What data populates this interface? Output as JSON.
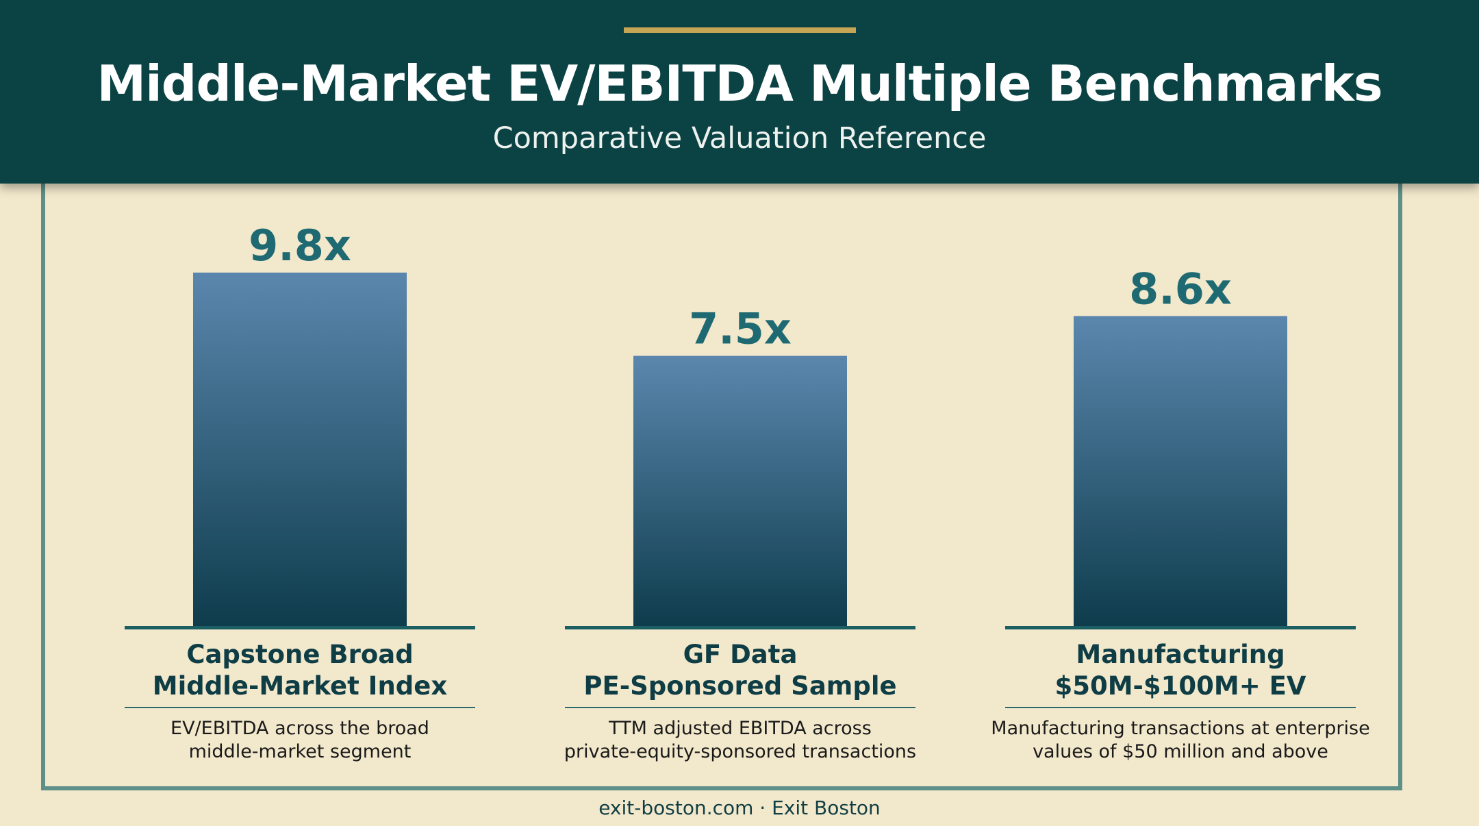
{
  "header": {
    "title": "Middle-Market EV/EBITDA Multiple Benchmarks",
    "subtitle": "Comparative Valuation Reference"
  },
  "colors": {
    "header_bg": "#0b4244",
    "accent": "#c6a554",
    "page_bg": "#f2e8cc",
    "bar_top": "#5b87ae",
    "bar_bottom": "#0e3c4c",
    "value_label": "#1f6a72",
    "category_label": "#0f3d45",
    "frame": "#5e9088"
  },
  "chart_data": {
    "type": "bar",
    "title": "Middle-Market EV/EBITDA Multiple Benchmarks",
    "subtitle": "Comparative Valuation Reference",
    "categories": [
      "Capstone Broad Middle-Market Index",
      "GF Data PE-Sponsored Sample",
      "Manufacturing $50M-$100M+ EV"
    ],
    "values": [
      9.8,
      7.5,
      8.6
    ],
    "value_labels": [
      "9.8x",
      "7.5x",
      "8.6x"
    ],
    "label_lines": [
      [
        "Capstone Broad",
        "Middle-Market Index"
      ],
      [
        "GF Data",
        "PE-Sponsored Sample"
      ],
      [
        "Manufacturing",
        "$50M-$100M+ EV"
      ]
    ],
    "descriptions": [
      [
        "EV/EBITDA across the broad",
        "middle-market segment"
      ],
      [
        "TTM adjusted EBITDA across",
        "private-equity-sponsored transactions"
      ],
      [
        "Manufacturing transactions at enterprise",
        "values of $50 million and above"
      ]
    ],
    "ylim": [
      0,
      9.8
    ],
    "grid": false,
    "legend": "none"
  },
  "footer": {
    "text": "exit-boston.com · Exit Boston"
  }
}
